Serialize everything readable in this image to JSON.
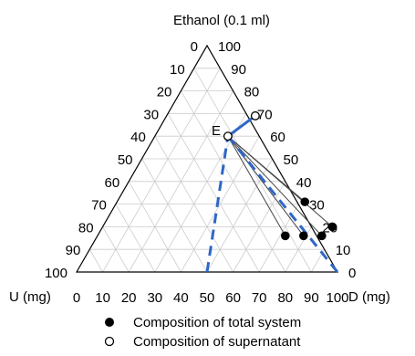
{
  "chart_data": {
    "type": "scatter",
    "subtype": "ternary-phase-diagram",
    "axes": {
      "top": {
        "label": "Ethanol (0.1 ml)",
        "ticks": [
          "0",
          "10",
          "20",
          "30",
          "40",
          "50",
          "60",
          "70",
          "80",
          "90",
          "100"
        ],
        "right_side_ticks": [
          "100",
          "90",
          "80",
          "70",
          "60",
          "50",
          "40",
          "30",
          "20",
          "10",
          "0"
        ]
      },
      "bottom_left": {
        "label": "U (mg)"
      },
      "bottom_right": {
        "label": "D (mg)",
        "ticks": [
          "0",
          "10",
          "20",
          "30",
          "40",
          "50",
          "60",
          "70",
          "80",
          "90",
          "100"
        ]
      }
    },
    "grid": true,
    "grid_step": 10,
    "point_label": "E",
    "total_system": {
      "name": "Composition of total system",
      "points": [
        {
          "D": 72,
          "E": 16
        },
        {
          "D": 79,
          "E": 16
        },
        {
          "D": 86,
          "E": 16
        },
        {
          "D": 88,
          "E": 20
        },
        {
          "D": 72,
          "E": 31
        }
      ]
    },
    "supernatant": {
      "name": "Composition of supernatant",
      "points": [
        {
          "D": 34,
          "E": 69
        },
        {
          "D": 28,
          "E": 60
        }
      ]
    },
    "tie_lines_from": {
      "D": 28,
      "E": 60
    },
    "binodal_curve": [
      {
        "D": 50,
        "E": 0
      },
      {
        "D": 28,
        "E": 60
      },
      {
        "D": 34,
        "E": 69
      }
    ],
    "boundary_line": [
      {
        "D": 28,
        "E": 60
      },
      {
        "D": 100,
        "E": 0
      }
    ],
    "colors": {
      "curve": "#2f67c7",
      "tie_line": "#444444",
      "grid": "#cccccc",
      "edge": "#000000"
    },
    "legend": {
      "position": "bottom",
      "items": [
        {
          "marker": "filled-circle",
          "label": "Composition of total system"
        },
        {
          "marker": "open-circle",
          "label": "Composition of supernatant"
        }
      ]
    }
  }
}
